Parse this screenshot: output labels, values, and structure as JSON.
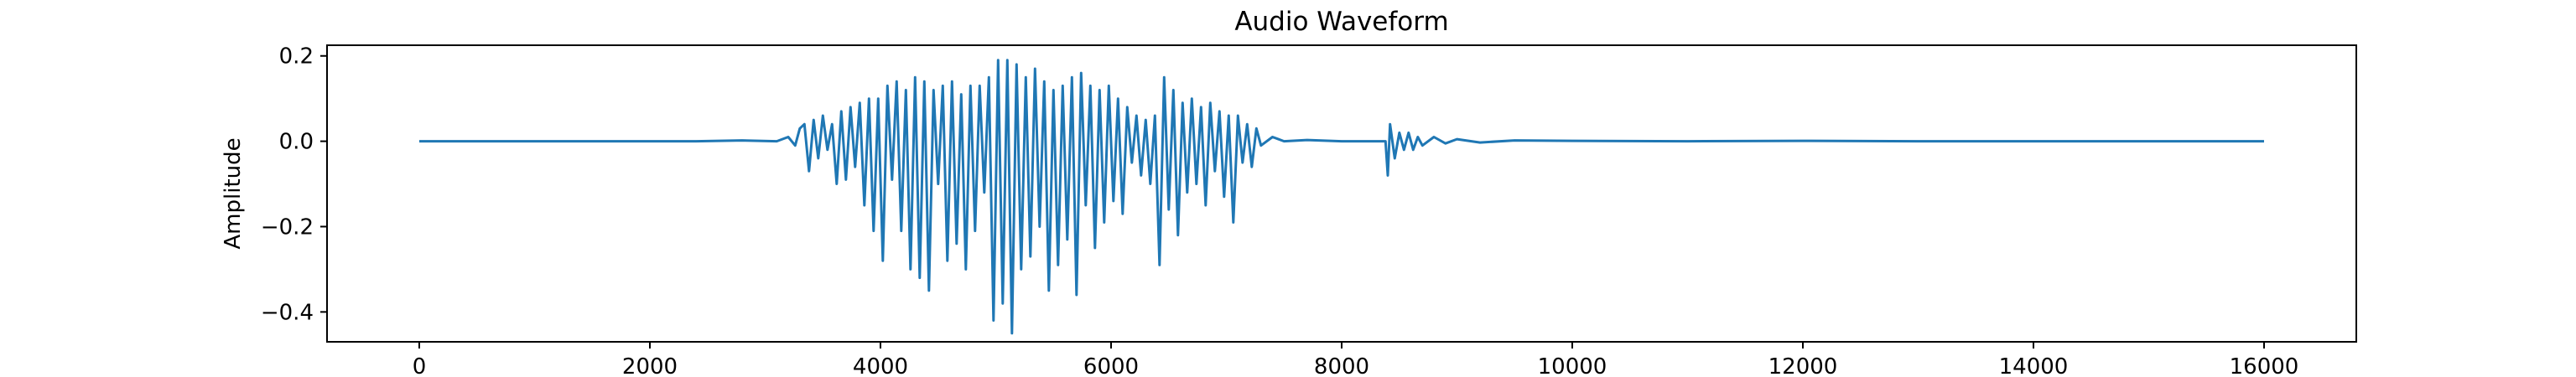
{
  "chart_data": {
    "type": "line",
    "title": "Audio Waveform",
    "xlabel": "",
    "ylabel": "Amplitude",
    "xlim": [
      -800,
      16800
    ],
    "ylim": [
      -0.47,
      0.225
    ],
    "x_ticks": [
      0,
      2000,
      4000,
      6000,
      8000,
      10000,
      12000,
      14000,
      16000
    ],
    "x_tick_labels": [
      "0",
      "2000",
      "4000",
      "6000",
      "8000",
      "10000",
      "12000",
      "14000",
      "16000"
    ],
    "y_ticks": [
      0.2,
      0.0,
      -0.2,
      -0.4
    ],
    "y_tick_labels": [
      "0.2",
      "0.0",
      "−0.2",
      "−0.4"
    ],
    "grid": false,
    "series": [
      {
        "color": "#1f77b4",
        "x": [
          0,
          2400,
          2800,
          3100,
          3200,
          3260,
          3300,
          3340,
          3380,
          3420,
          3460,
          3500,
          3540,
          3580,
          3620,
          3660,
          3700,
          3740,
          3780,
          3820,
          3860,
          3900,
          3940,
          3980,
          4020,
          4060,
          4100,
          4140,
          4180,
          4220,
          4260,
          4300,
          4340,
          4380,
          4420,
          4460,
          4500,
          4540,
          4580,
          4620,
          4660,
          4700,
          4740,
          4780,
          4820,
          4860,
          4900,
          4940,
          4980,
          5020,
          5060,
          5100,
          5140,
          5180,
          5220,
          5260,
          5300,
          5340,
          5380,
          5420,
          5460,
          5500,
          5540,
          5580,
          5620,
          5660,
          5700,
          5740,
          5780,
          5820,
          5860,
          5900,
          5940,
          5980,
          6020,
          6060,
          6100,
          6140,
          6180,
          6220,
          6260,
          6300,
          6340,
          6380,
          6420,
          6460,
          6500,
          6540,
          6580,
          6620,
          6660,
          6700,
          6740,
          6780,
          6820,
          6860,
          6900,
          6940,
          6980,
          7020,
          7060,
          7100,
          7140,
          7180,
          7220,
          7260,
          7300,
          7400,
          7500,
          7700,
          8000,
          8300,
          8380,
          8400,
          8420,
          8460,
          8500,
          8540,
          8580,
          8620,
          8660,
          8700,
          8800,
          8900,
          9000,
          9200,
          9500,
          10000,
          11000,
          12000,
          13000,
          14000,
          15000,
          16000
        ],
        "y": [
          0.0,
          0.0,
          0.002,
          0.0,
          0.01,
          -0.01,
          0.03,
          0.04,
          -0.07,
          0.05,
          -0.04,
          0.06,
          -0.02,
          0.04,
          -0.1,
          0.07,
          -0.09,
          0.08,
          -0.06,
          0.09,
          -0.15,
          0.1,
          -0.21,
          0.1,
          -0.28,
          0.13,
          -0.09,
          0.14,
          -0.21,
          0.12,
          -0.3,
          0.15,
          -0.32,
          0.14,
          -0.35,
          0.12,
          -0.1,
          0.13,
          -0.28,
          0.14,
          -0.24,
          0.11,
          -0.3,
          0.13,
          -0.21,
          0.13,
          -0.12,
          0.15,
          -0.42,
          0.19,
          -0.38,
          0.19,
          -0.45,
          0.18,
          -0.3,
          0.15,
          -0.27,
          0.17,
          -0.2,
          0.14,
          -0.35,
          0.12,
          -0.29,
          0.13,
          -0.23,
          0.15,
          -0.36,
          0.16,
          -0.15,
          0.13,
          -0.25,
          0.12,
          -0.19,
          0.13,
          -0.14,
          0.1,
          -0.17,
          0.08,
          -0.05,
          0.06,
          -0.08,
          0.05,
          -0.1,
          0.06,
          -0.29,
          0.15,
          -0.16,
          0.12,
          -0.22,
          0.09,
          -0.12,
          0.1,
          -0.1,
          0.08,
          -0.15,
          0.09,
          -0.07,
          0.07,
          -0.13,
          0.06,
          -0.19,
          0.06,
          -0.05,
          0.04,
          -0.06,
          0.03,
          -0.01,
          0.01,
          0.0,
          0.003,
          0.0,
          0.0,
          0.0,
          -0.08,
          0.04,
          -0.04,
          0.02,
          -0.02,
          0.02,
          -0.02,
          0.01,
          -0.01,
          0.01,
          -0.005,
          0.005,
          -0.003,
          0.002,
          0.001,
          0.0,
          0.001,
          0.0,
          0.0,
          0.0,
          0.0
        ]
      }
    ]
  }
}
